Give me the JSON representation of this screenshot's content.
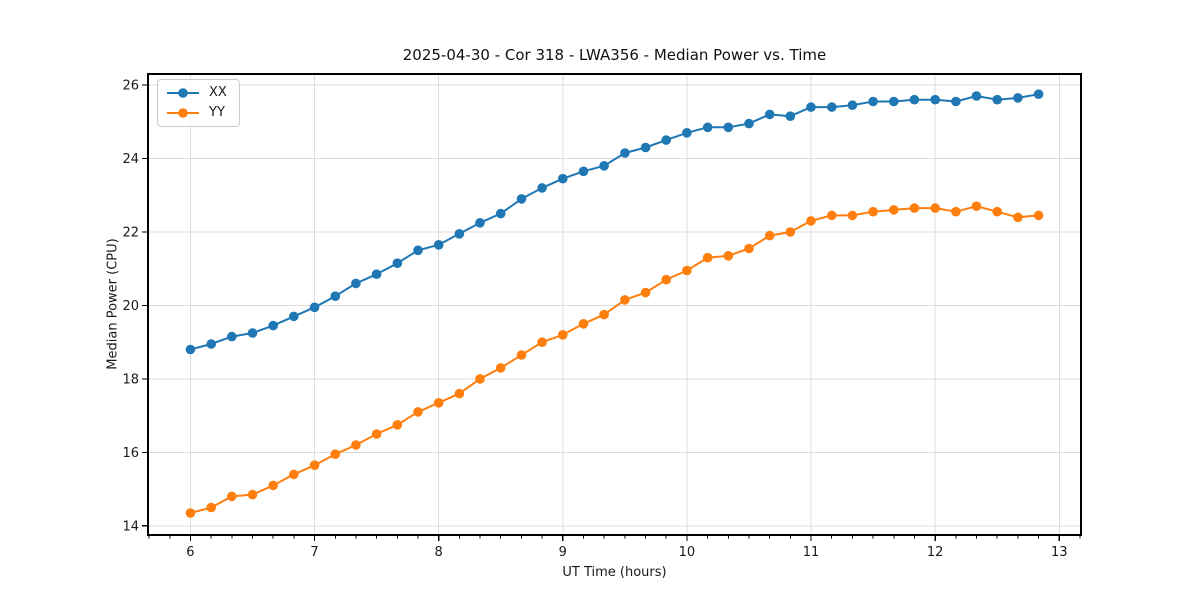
{
  "figure": {
    "background": "#ffffff"
  },
  "legend": {
    "position": "upper-left"
  },
  "chart_data": {
    "type": "line",
    "title": "2025-04-30 - Cor 318 - LWA356 - Median Power vs. Time",
    "xlabel": "UT Time (hours)",
    "ylabel": "Median Power (CPU)",
    "xlim": [
      5.658,
      13.175
    ],
    "ylim": [
      13.75,
      26.3
    ],
    "x_ticks": [
      6,
      7,
      8,
      9,
      10,
      11,
      12,
      13
    ],
    "y_ticks": [
      14,
      16,
      18,
      20,
      22,
      24,
      26
    ],
    "x_minor_per_major": 6,
    "grid": true,
    "grid_color": "#dcdcdc",
    "spine_color": "#000000",
    "legend_position": "upper left",
    "x": [
      6.0,
      6.167,
      6.333,
      6.5,
      6.667,
      6.833,
      7.0,
      7.167,
      7.333,
      7.5,
      7.667,
      7.833,
      8.0,
      8.167,
      8.333,
      8.5,
      8.667,
      8.833,
      9.0,
      9.167,
      9.333,
      9.5,
      9.667,
      9.833,
      10.0,
      10.167,
      10.333,
      10.5,
      10.667,
      10.833,
      11.0,
      11.167,
      11.333,
      11.5,
      11.667,
      11.833,
      12.0,
      12.167,
      12.333,
      12.5,
      12.667,
      12.833
    ],
    "series": [
      {
        "name": "XX",
        "color": "#1f77b4",
        "values": [
          18.8,
          18.95,
          19.15,
          19.25,
          19.45,
          19.7,
          19.95,
          20.25,
          20.6,
          20.85,
          21.15,
          21.5,
          21.65,
          21.95,
          22.25,
          22.5,
          22.9,
          23.2,
          23.45,
          23.65,
          23.8,
          24.15,
          24.3,
          24.5,
          24.7,
          24.85,
          24.85,
          24.95,
          25.2,
          25.15,
          25.4,
          25.4,
          25.45,
          25.55,
          25.55,
          25.6,
          25.6,
          25.55,
          25.7,
          25.6,
          25.65,
          25.75
        ]
      },
      {
        "name": "YY",
        "color": "#ff7f0e",
        "values": [
          14.35,
          14.5,
          14.8,
          14.85,
          15.1,
          15.4,
          15.65,
          15.95,
          16.2,
          16.5,
          16.75,
          17.1,
          17.35,
          17.6,
          18.0,
          18.3,
          18.65,
          19.0,
          19.2,
          19.5,
          19.75,
          20.15,
          20.35,
          20.7,
          20.95,
          21.3,
          21.35,
          21.55,
          21.9,
          22.0,
          22.3,
          22.45,
          22.45,
          22.55,
          22.6,
          22.65,
          22.65,
          22.55,
          22.7,
          22.55,
          22.4,
          22.45
        ]
      }
    ]
  }
}
